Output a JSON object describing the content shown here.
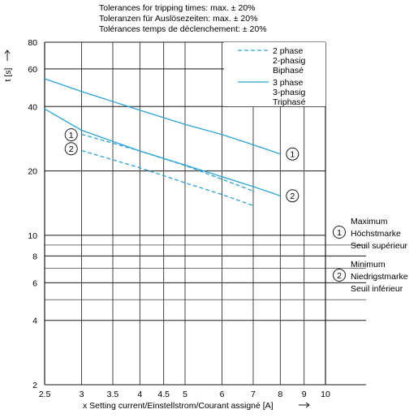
{
  "header_lines": [
    "Tolerances for tripping times: max. ± 20%",
    "Toleranzen für Auslösezeiten: max. ± 20%",
    "Tolérances temps de déclenchement: ± 20%"
  ],
  "chart_data": {
    "type": "line",
    "x_scale": "log",
    "y_scale": "log",
    "xlim": [
      2.5,
      10
    ],
    "ylim": [
      2,
      80
    ],
    "x_ticks": [
      2.5,
      3,
      3.5,
      4,
      4.5,
      5,
      6,
      7,
      8,
      9,
      10
    ],
    "x_tick_labels": [
      "2.5",
      "3",
      "3.5",
      "4",
      "4.5",
      "5",
      "6",
      "7",
      "8",
      "9",
      "10"
    ],
    "y_gridlines": [
      2,
      4,
      5,
      6,
      7,
      8,
      9,
      10,
      20,
      40,
      60,
      80
    ],
    "y_ticks": [
      2,
      4,
      6,
      8,
      10,
      20,
      40,
      60,
      80
    ],
    "y_tick_labels": [
      "2",
      "4",
      "6",
      "8",
      "10",
      "20",
      "40",
      "60",
      "80"
    ],
    "xlabel": "x Setting current/Einstellstrom/Courant assigné [A]",
    "ylabel": "t [s]",
    "grid": true,
    "legend_position": "top-right",
    "color": "#29a3d8",
    "series": [
      {
        "name": "2 phase / 2-phasig / Biphasé",
        "style": "dashed",
        "marker": "1",
        "x": [
          3,
          4,
          5,
          6,
          7,
          7.05
        ],
        "y": [
          29.7,
          24.8,
          21.2,
          18.3,
          16.1,
          16.0
        ]
      },
      {
        "name": "2 phase / 2-phasig / Biphasé",
        "style": "dashed",
        "marker": "2",
        "x": [
          3,
          4,
          5,
          6,
          7.05
        ],
        "y": [
          24.9,
          20.7,
          17.6,
          15.5,
          13.7
        ]
      },
      {
        "name": "3 phase / 3-phasig / Triphasé",
        "style": "solid",
        "marker": "1",
        "x": [
          2.5,
          3,
          4,
          5,
          6,
          7,
          8
        ],
        "y": [
          54,
          47,
          38.5,
          33,
          29.6,
          26.5,
          24.0
        ]
      },
      {
        "name": "3 phase / 3-phasig / Triphasé",
        "style": "solid",
        "marker": "2",
        "x": [
          2.5,
          3,
          4,
          5,
          6,
          7,
          8
        ],
        "y": [
          39,
          31,
          24.8,
          21.3,
          18.8,
          16.9,
          15.3
        ]
      }
    ]
  },
  "legend": [
    {
      "style": "dashed",
      "lines": [
        "2 phase",
        "2-phasig",
        "Biphasé"
      ]
    },
    {
      "style": "solid",
      "lines": [
        "3 phase",
        "3-phasig",
        "Triphasé"
      ]
    }
  ],
  "curve_markers": [
    {
      "label": "1",
      "x": 8,
      "y": 24.0
    },
    {
      "label": "2",
      "x": 8,
      "y": 15.3
    }
  ],
  "left_markers": [
    {
      "label": "1",
      "x": 2.85,
      "y": 29.5
    },
    {
      "label": "2",
      "x": 2.85,
      "y": 25.4
    }
  ],
  "right_key": [
    {
      "label": "1",
      "lines": [
        "Maximum",
        "Höchstmarke",
        "Seuil supérieur"
      ]
    },
    {
      "label": "2",
      "lines": [
        "Minimum",
        "Niedrigstmarke",
        "Seuil inférieur"
      ]
    }
  ]
}
